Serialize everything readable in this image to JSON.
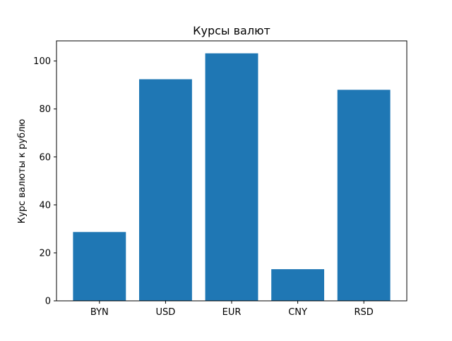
{
  "chart_data": {
    "type": "bar",
    "title": "Курсы валют",
    "xlabel": "",
    "ylabel": "Курс валюты к рублю",
    "categories": [
      "BYN",
      "USD",
      "EUR",
      "CNY",
      "RSD"
    ],
    "values": [
      28.7,
      92.4,
      103.2,
      13.2,
      88.0
    ],
    "ylim": [
      0,
      108.4
    ],
    "yticks": [
      0,
      20,
      40,
      60,
      80,
      100
    ],
    "bar_color": "#1f77b4",
    "grid": false,
    "legend": "none"
  }
}
